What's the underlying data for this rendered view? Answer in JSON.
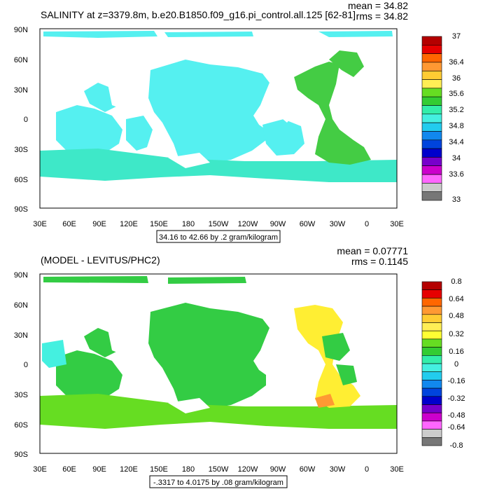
{
  "panels": [
    {
      "title": "SALINITY at z=3379.8m, b.e20.B1850.f09_g16.pi_control.all.125 [62-81]",
      "stat_mean": "mean = 34.82",
      "stat_rms": "rms = 34.82",
      "range_label": "34.16 to 42.66 by .2 gram/kilogram",
      "lat_labels": [
        "90N",
        "60N",
        "30N",
        "0",
        "30S",
        "60S",
        "90S"
      ],
      "lon_labels": [
        "30E",
        "60E",
        "90E",
        "120E",
        "150E",
        "180",
        "150W",
        "120W",
        "90W",
        "60W",
        "30W",
        "0",
        "30E"
      ],
      "colorbar_labels": [
        "37",
        "36.4",
        "36",
        "35.6",
        "35.2",
        "34.8",
        "34.4",
        "34",
        "33.6",
        "33"
      ],
      "colorbar_colors": [
        "#b40000",
        "#e60000",
        "#ff6600",
        "#ff9933",
        "#ffcc33",
        "#ffee55",
        "#66dd22",
        "#33cc33",
        "#33eeaa",
        "#44f0e0",
        "#22ccee",
        "#1188ee",
        "#0044dd",
        "#0000cc",
        "#7700cc",
        "#cc00cc",
        "#ff66ff",
        "#cccccc",
        "#777777"
      ]
    },
    {
      "title": "(MODEL - LEVITUS/PHC2)",
      "stat_mean": "mean = 0.07771",
      "stat_rms": "rms = 0.1145",
      "range_label": "-.3317 to 4.0175 by .08 gram/kilogram",
      "lat_labels": [
        "90N",
        "60N",
        "30N",
        "0",
        "30S",
        "60S",
        "90S"
      ],
      "lon_labels": [
        "30E",
        "60E",
        "90E",
        "120E",
        "150E",
        "180",
        "150W",
        "120W",
        "90W",
        "60W",
        "30W",
        "0",
        "30E"
      ],
      "colorbar_labels": [
        "0.8",
        "0.64",
        "0.48",
        "0.32",
        "0.16",
        "0",
        "-0.16",
        "-0.32",
        "-0.48",
        "-0.64",
        "-0.8"
      ],
      "colorbar_colors": [
        "#b40000",
        "#e60000",
        "#ff6600",
        "#ff9933",
        "#ffcc33",
        "#ffee55",
        "#ffff33",
        "#66dd22",
        "#33cc33",
        "#33eeaa",
        "#44f0e0",
        "#22ccee",
        "#1188ee",
        "#0044dd",
        "#0000cc",
        "#7700cc",
        "#cc00cc",
        "#ff66ff",
        "#cccccc",
        "#777777"
      ]
    }
  ],
  "colors": {
    "panel1_field": "#55f0f0",
    "panel1_atlantic": "#44cc44",
    "panel1_south": "#3ee8c8",
    "panel2_field": "#33cc44",
    "panel2_south": "#66dd22",
    "panel2_yellow": "#ffee33",
    "panel2_cyan": "#44f0e0",
    "land": "#ffffff"
  }
}
